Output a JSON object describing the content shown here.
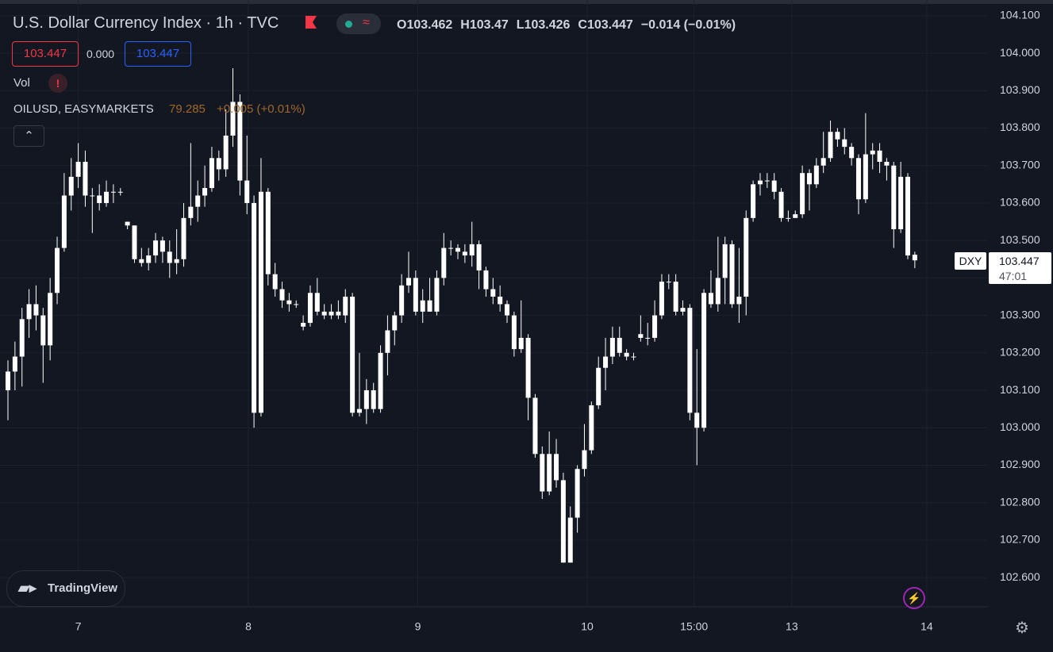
{
  "chart_data": {
    "type": "candlestick",
    "title": "U.S. Dollar Currency Index · 1h · TVC",
    "ohlc_legend": [
      {
        "label": "O",
        "value": 103.462
      },
      {
        "label": "H",
        "value": 103.47
      },
      {
        "label": "L",
        "value": 103.426
      },
      {
        "label": "C",
        "value": 103.447
      }
    ],
    "change": "−0.014 (−0.01%)",
    "bid": "103.447",
    "spread": "0.000",
    "ask": "103.447",
    "volume_label": "Vol",
    "compare_symbol": "OILUSD, EASYMARKETS",
    "compare_price": "79.285",
    "compare_change": "+0.005 (+0.01%)",
    "price_tag_symbol": "DXY",
    "price_tag_value": "103.447",
    "price_tag_countdown": "47:01",
    "brand": "TradingView",
    "up_color": "#ffffff",
    "down_color": "#ffffff",
    "grid": true,
    "ylim": [
      102.522,
      104.142
    ],
    "yticks": [
      {
        "value": 102.6,
        "label": "102.600"
      },
      {
        "value": 102.7,
        "label": "102.700"
      },
      {
        "value": 102.8,
        "label": "102.800"
      },
      {
        "value": 102.9,
        "label": "102.900"
      },
      {
        "value": 103.0,
        "label": "103.000"
      },
      {
        "value": 103.1,
        "label": "103.100"
      },
      {
        "value": 103.2,
        "label": "103.200"
      },
      {
        "value": 103.3,
        "label": "103.300"
      },
      {
        "value": 103.4,
        "label": "103.400"
      },
      {
        "value": 103.5,
        "label": "103.500"
      },
      {
        "value": 103.6,
        "label": "103.600"
      },
      {
        "value": 103.7,
        "label": "103.700"
      },
      {
        "value": 103.8,
        "label": "103.800"
      },
      {
        "value": 103.9,
        "label": "103.900"
      },
      {
        "value": 104.0,
        "label": "104.000"
      },
      {
        "value": 104.1,
        "label": "104.100"
      }
    ],
    "xlim": [
      -1.13,
      139.4
    ],
    "xticks": [
      {
        "value": 10,
        "label": "7"
      },
      {
        "value": 34.2,
        "label": "8"
      },
      {
        "value": 58.3,
        "label": "9"
      },
      {
        "value": 82.4,
        "label": "10"
      },
      {
        "value": 97.6,
        "label": "15:00"
      },
      {
        "value": 111.5,
        "label": "13"
      },
      {
        "value": 130.7,
        "label": "14"
      }
    ],
    "x": [
      0,
      1,
      2,
      3,
      4,
      5,
      6,
      7,
      8,
      9,
      10,
      11,
      12,
      13,
      14,
      15,
      16,
      17,
      18,
      19,
      20,
      21,
      22,
      23,
      24,
      25,
      26,
      27,
      28,
      29,
      30,
      31,
      32,
      33,
      34,
      35,
      36,
      37,
      38,
      39,
      40,
      41,
      42,
      43,
      44,
      45,
      46,
      47,
      48,
      49,
      50,
      51,
      52,
      53,
      54,
      55,
      56,
      57,
      58,
      59,
      60,
      61,
      62,
      63,
      64,
      65,
      66,
      67,
      68,
      69,
      70,
      71,
      72,
      73,
      74,
      75,
      76,
      77,
      78,
      79,
      80,
      81,
      82,
      83,
      84,
      85,
      86,
      87,
      88,
      89,
      90,
      91,
      92,
      93,
      94,
      95,
      96,
      97,
      98,
      99,
      100,
      101,
      102,
      103,
      104,
      105,
      106,
      107,
      108,
      109,
      110,
      111,
      112,
      113,
      114,
      115,
      116,
      117,
      118,
      119,
      120,
      121,
      122,
      123,
      124,
      125,
      126,
      127,
      128,
      129
    ],
    "open": [
      103.1,
      103.15,
      103.19,
      103.29,
      103.33,
      103.3,
      103.22,
      103.36,
      103.48,
      103.62,
      103.67,
      103.71,
      103.62,
      103.62,
      103.6,
      103.63,
      103.63,
      103.55,
      103.54,
      103.45,
      103.44,
      103.46,
      103.5,
      103.47,
      103.44,
      103.45,
      103.56,
      103.59,
      103.62,
      103.64,
      103.72,
      103.69,
      103.78,
      103.87,
      103.66,
      103.6,
      103.04,
      103.63,
      103.41,
      103.37,
      103.34,
      103.33,
      103.27,
      103.28,
      103.36,
      103.31,
      103.3,
      103.31,
      103.3,
      103.35,
      103.04,
      103.05,
      103.1,
      103.05,
      103.2,
      103.26,
      103.3,
      103.38,
      103.4,
      103.31,
      103.34,
      103.31,
      103.4,
      103.48,
      103.48,
      103.47,
      103.46,
      103.49,
      103.42,
      103.37,
      103.35,
      103.33,
      103.3,
      103.21,
      103.24,
      103.08,
      102.93,
      102.83,
      102.93,
      102.86,
      102.64,
      102.76,
      102.89,
      102.94,
      103.06,
      103.16,
      103.19,
      103.24,
      103.2,
      103.19,
      103.25,
      103.24,
      103.24,
      103.3,
      103.39,
      103.39,
      103.31,
      103.32,
      103.04,
      103.0,
      103.36,
      103.33,
      103.4,
      103.49,
      103.33,
      103.35,
      103.56,
      103.65,
      103.66,
      103.66,
      103.63,
      103.56,
      103.56,
      103.57,
      103.68,
      103.65,
      103.7,
      103.72,
      103.79,
      103.77,
      103.75,
      103.72,
      103.61,
      103.73,
      103.74,
      103.71,
      103.7,
      103.53,
      103.67,
      103.462
    ],
    "high": [
      103.18,
      103.23,
      103.32,
      103.37,
      103.38,
      103.32,
      103.4,
      103.51,
      103.68,
      103.72,
      103.76,
      103.74,
      103.64,
      103.65,
      103.66,
      103.65,
      103.64,
      103.55,
      103.54,
      103.48,
      103.48,
      103.52,
      103.51,
      103.5,
      103.53,
      103.6,
      103.76,
      103.66,
      103.7,
      103.75,
      103.74,
      103.85,
      103.96,
      103.89,
      103.78,
      103.62,
      103.72,
      103.64,
      103.44,
      103.39,
      103.36,
      103.34,
      103.3,
      103.38,
      103.4,
      103.33,
      103.33,
      103.34,
      103.37,
      103.36,
      103.2,
      103.13,
      103.12,
      103.22,
      103.3,
      103.31,
      103.41,
      103.47,
      103.42,
      103.37,
      103.4,
      103.42,
      103.52,
      103.5,
      103.49,
      103.49,
      103.55,
      103.5,
      103.43,
      103.4,
      103.38,
      103.34,
      103.31,
      103.34,
      103.25,
      103.09,
      102.95,
      102.99,
      102.97,
      102.88,
      102.79,
      102.9,
      103.01,
      103.07,
      103.19,
      103.24,
      103.27,
      103.27,
      103.21,
      103.2,
      103.3,
      103.28,
      103.34,
      103.41,
      103.41,
      103.41,
      103.34,
      103.33,
      103.21,
      103.37,
      103.42,
      103.51,
      103.51,
      103.5,
      103.48,
      103.58,
      103.66,
      103.68,
      103.68,
      103.68,
      103.64,
      103.58,
      103.58,
      103.7,
      103.69,
      103.72,
      103.79,
      103.82,
      103.8,
      103.8,
      103.76,
      103.73,
      103.84,
      103.76,
      103.76,
      103.72,
      103.71,
      103.71,
      103.68,
      103.47
    ],
    "low": [
      103.02,
      103.1,
      103.11,
      103.24,
      103.26,
      103.12,
      103.18,
      103.33,
      103.47,
      103.58,
      103.64,
      103.59,
      103.52,
      103.58,
      103.59,
      103.6,
      103.62,
      103.53,
      103.44,
      103.43,
      103.42,
      103.44,
      103.44,
      103.4,
      103.41,
      103.43,
      103.54,
      103.55,
      103.59,
      103.63,
      103.66,
      103.67,
      103.75,
      103.62,
      103.57,
      103.0,
      103.03,
      103.38,
      103.35,
      103.32,
      103.31,
      103.32,
      103.26,
      103.27,
      103.3,
      103.29,
      103.29,
      103.29,
      103.28,
      103.03,
      103.03,
      103.01,
      103.04,
      103.04,
      103.14,
      103.22,
      103.28,
      103.36,
      103.3,
      103.28,
      103.31,
      103.3,
      103.38,
      103.46,
      103.45,
      103.44,
      103.43,
      103.37,
      103.35,
      103.33,
      103.31,
      103.28,
      103.19,
      103.2,
      103.02,
      102.92,
      102.81,
      102.82,
      102.84,
      102.64,
      102.64,
      102.72,
      102.87,
      102.93,
      103.05,
      103.1,
      103.17,
      103.19,
      103.18,
      103.18,
      103.23,
      103.22,
      103.23,
      103.29,
      103.37,
      103.3,
      103.3,
      103.02,
      102.9,
      102.99,
      103.32,
      103.31,
      103.33,
      103.32,
      103.28,
      103.3,
      103.55,
      103.62,
      103.64,
      103.61,
      103.55,
      103.55,
      103.56,
      103.56,
      103.58,
      103.64,
      103.68,
      103.71,
      103.75,
      103.73,
      103.7,
      103.57,
      103.6,
      103.69,
      103.68,
      103.66,
      103.48,
      103.52,
      103.45,
      103.426
    ],
    "close": [
      103.15,
      103.19,
      103.29,
      103.33,
      103.3,
      103.22,
      103.36,
      103.48,
      103.62,
      103.67,
      103.71,
      103.62,
      103.62,
      103.6,
      103.63,
      103.63,
      103.63,
      103.54,
      103.45,
      103.44,
      103.46,
      103.5,
      103.47,
      103.44,
      103.45,
      103.56,
      103.59,
      103.62,
      103.64,
      103.72,
      103.69,
      103.78,
      103.87,
      103.66,
      103.6,
      103.04,
      103.63,
      103.41,
      103.37,
      103.34,
      103.33,
      103.33,
      103.28,
      103.36,
      103.31,
      103.3,
      103.31,
      103.3,
      103.35,
      103.04,
      103.05,
      103.1,
      103.05,
      103.2,
      103.26,
      103.3,
      103.38,
      103.4,
      103.31,
      103.34,
      103.31,
      103.4,
      103.48,
      103.48,
      103.47,
      103.46,
      103.49,
      103.42,
      103.37,
      103.35,
      103.33,
      103.3,
      103.21,
      103.24,
      103.08,
      102.93,
      102.83,
      102.93,
      102.86,
      102.64,
      102.76,
      102.89,
      102.94,
      103.06,
      103.16,
      103.19,
      103.24,
      103.2,
      103.19,
      103.19,
      103.24,
      103.24,
      103.3,
      103.39,
      103.39,
      103.31,
      103.32,
      103.04,
      103.0,
      103.36,
      103.33,
      103.4,
      103.49,
      103.33,
      103.35,
      103.56,
      103.65,
      103.66,
      103.66,
      103.63,
      103.56,
      103.56,
      103.57,
      103.68,
      103.65,
      103.7,
      103.72,
      103.79,
      103.77,
      103.75,
      103.72,
      103.61,
      103.73,
      103.74,
      103.71,
      103.7,
      103.53,
      103.67,
      103.46,
      103.447
    ]
  }
}
